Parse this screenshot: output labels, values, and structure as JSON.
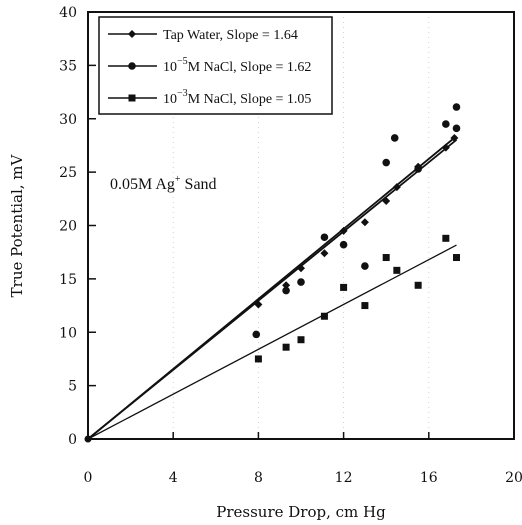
{
  "chart_data": {
    "type": "scatter",
    "xlabel": "Pressure Drop, cm Hg",
    "ylabel": "True Potential, mV",
    "xlim": [
      0,
      20
    ],
    "ylim": [
      0,
      40
    ],
    "xticks": [
      "0",
      "4",
      "8",
      "12",
      "16",
      "20"
    ],
    "yticks": [
      "0",
      "5",
      "10",
      "15",
      "20",
      "25",
      "30",
      "35",
      "40"
    ],
    "annotation": {
      "base": "0.05M Ag",
      "sup": "+",
      "tail": " Sand"
    },
    "legend_position": "top-left",
    "series": [
      {
        "name": "Tap Water, Slope = 1.64",
        "legend_parts": {
          "base": "Tap Water, Slope = 1.64",
          "sup": "",
          "tail": ""
        },
        "marker": "diamond",
        "slope": 1.64,
        "points": [
          [
            8,
            12.6
          ],
          [
            9.3,
            14.4
          ],
          [
            10,
            16.0
          ],
          [
            11.1,
            17.4
          ],
          [
            12,
            19.5
          ],
          [
            13,
            20.3
          ],
          [
            14,
            22.3
          ],
          [
            14.5,
            23.6
          ],
          [
            15.5,
            25.5
          ],
          [
            16.8,
            27.3
          ],
          [
            17.2,
            28.2
          ]
        ]
      },
      {
        "name": "10-5M NaCl, Slope = 1.62",
        "legend_parts": {
          "base": "10",
          "sup": "−5",
          "tail": "M NaCl, Slope = 1.62"
        },
        "marker": "circle",
        "slope": 1.62,
        "points": [
          [
            7.9,
            9.8
          ],
          [
            9.3,
            13.9
          ],
          [
            10,
            14.7
          ],
          [
            11.1,
            18.9
          ],
          [
            12,
            18.2
          ],
          [
            13,
            16.2
          ],
          [
            14,
            25.9
          ],
          [
            14.4,
            28.2
          ],
          [
            15.5,
            25.3
          ],
          [
            16.8,
            29.5
          ],
          [
            17.3,
            31.1
          ],
          [
            17.3,
            29.1
          ]
        ]
      },
      {
        "name": "10-3M NaCl, Slope = 1.05",
        "legend_parts": {
          "base": "10",
          "sup": "−3",
          "tail": "M NaCl, Slope = 1.05"
        },
        "marker": "square",
        "slope": 1.05,
        "points": [
          [
            8,
            7.5
          ],
          [
            9.3,
            8.6
          ],
          [
            10,
            9.3
          ],
          [
            11.1,
            11.5
          ],
          [
            12,
            14.2
          ],
          [
            13,
            12.5
          ],
          [
            14,
            17.0
          ],
          [
            14.5,
            15.8
          ],
          [
            15.5,
            14.4
          ],
          [
            16.8,
            18.8
          ],
          [
            17.3,
            17.0
          ]
        ]
      }
    ]
  }
}
